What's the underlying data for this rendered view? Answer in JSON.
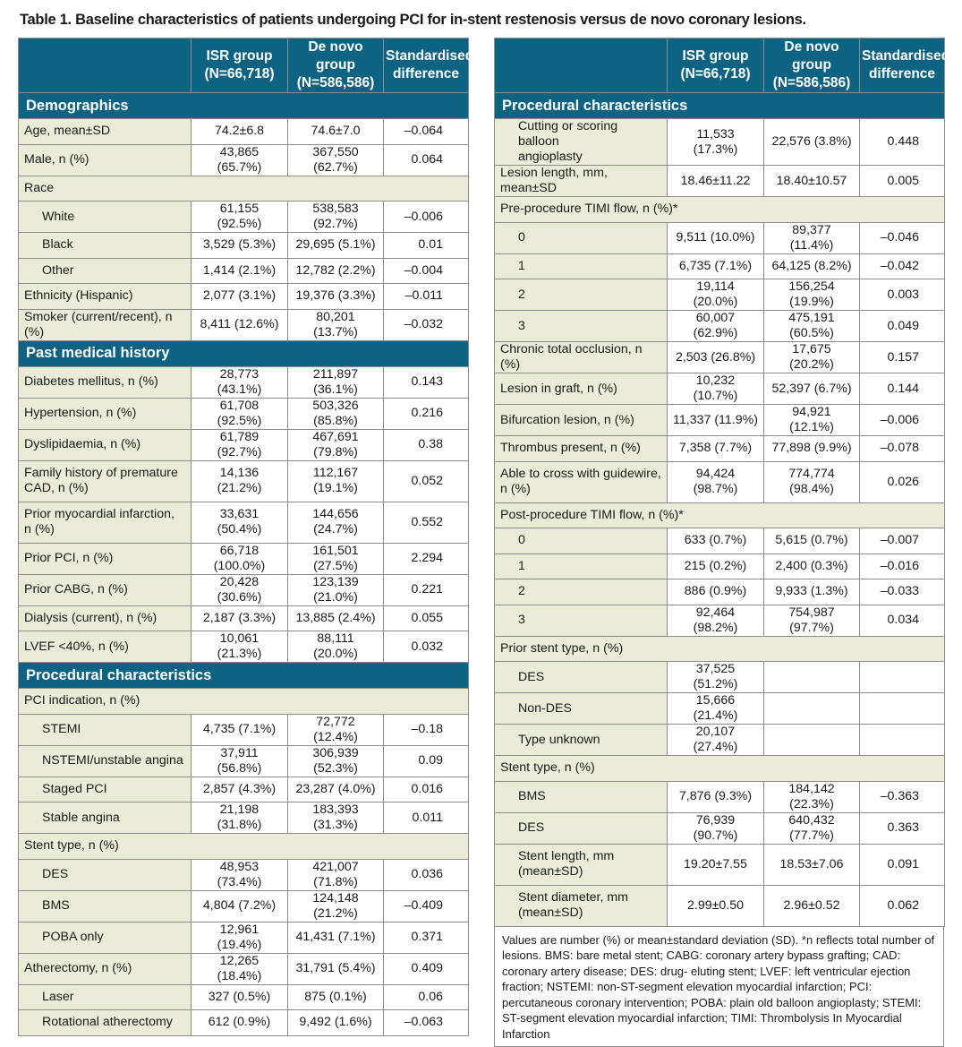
{
  "title": "Table 1. Baseline characteristics of patients undergoing PCI for in-stent restenosis versus de novo coronary lesions.",
  "columns": {
    "isr_line1": "ISR group",
    "isr_line2": "(N=66,718)",
    "dn_line1": "De novo group",
    "dn_line2": "(N=586,586)",
    "sd_line1": "Standardised",
    "sd_line2": "difference"
  },
  "left": {
    "demographics": {
      "header": "Demographics",
      "age": {
        "label": "Age, mean±SD",
        "isr": "74.2±6.8",
        "dn": "74.6±7.0",
        "sd": "–0.064"
      },
      "male": {
        "label": "Male, n (%)",
        "isr": "43,865 (65.7%)",
        "dn": "367,550 (62.7%)",
        "sd": "0.064"
      },
      "race": "Race",
      "white": {
        "label": "White",
        "isr": "61,155 (92.5%)",
        "dn": "538,583 (92.7%)",
        "sd": "–0.006"
      },
      "black": {
        "label": "Black",
        "isr": "3,529 (5.3%)",
        "dn": "29,695 (5.1%)",
        "sd": "0.01"
      },
      "other": {
        "label": "Other",
        "isr": "1,414 (2.1%)",
        "dn": "12,782 (2.2%)",
        "sd": "–0.004"
      },
      "hispanic": {
        "label": "Ethnicity (Hispanic)",
        "isr": "2,077 (3.1%)",
        "dn": "19,376 (3.3%)",
        "sd": "–0.011"
      },
      "smoker": {
        "label": "Smoker (current/recent), n (%)",
        "isr": "8,411 (12.6%)",
        "dn": "80,201 (13.7%)",
        "sd": "–0.032"
      }
    },
    "history": {
      "header": "Past medical history",
      "diabetes": {
        "label": "Diabetes mellitus, n (%)",
        "isr": "28,773 (43.1%)",
        "dn": "211,897 (36.1%)",
        "sd": "0.143"
      },
      "hypertension": {
        "label": "Hypertension, n (%)",
        "isr": "61,708 (92.5%)",
        "dn": "503,326 (85.8%)",
        "sd": "0.216"
      },
      "dyslipidaemia": {
        "label": "Dyslipidaemia, n (%)",
        "isr": "61,789 (92.7%)",
        "dn": "467,691 (79.8%)",
        "sd": "0.38"
      },
      "family_cad": {
        "label_line1": "Family history of premature",
        "label_line2": "CAD, n (%)",
        "isr": "14,136 (21.2%)",
        "dn": "112,167 (19.1%)",
        "sd": "0.052"
      },
      "prior_mi": {
        "label_line1": "Prior myocardial infarction,",
        "label_line2": "n (%)",
        "isr": "33,631 (50.4%)",
        "dn": "144,656 (24.7%)",
        "sd": "0.552"
      },
      "prior_pci": {
        "label": "Prior PCI, n (%)",
        "isr": "66,718 (100.0%)",
        "dn": "161,501 (27.5%)",
        "sd": "2.294"
      },
      "prior_cabg": {
        "label": "Prior CABG, n (%)",
        "isr": "20,428 (30.6%)",
        "dn": "123,139 (21.0%)",
        "sd": "0.221"
      },
      "dialysis": {
        "label": "Dialysis (current), n (%)",
        "isr": "2,187 (3.3%)",
        "dn": "13,885 (2.4%)",
        "sd": "0.055"
      },
      "lvef": {
        "label": "LVEF <40%, n (%)",
        "isr": "10,061 (21.3%)",
        "dn": "88,111 (20.0%)",
        "sd": "0.032"
      }
    },
    "procedural": {
      "header": "Procedural characteristics",
      "pci_indication": "PCI indication, n (%)",
      "stemi": {
        "label": "STEMI",
        "isr": "4,735 (7.1%)",
        "dn": "72,772 (12.4%)",
        "sd": "–0.18"
      },
      "nstemi": {
        "label": "NSTEMI/unstable angina",
        "isr": "37,911 (56.8%)",
        "dn": "306,939 (52.3%)",
        "sd": "0.09"
      },
      "staged": {
        "label": "Staged PCI",
        "isr": "2,857 (4.3%)",
        "dn": "23,287 (4.0%)",
        "sd": "0.016"
      },
      "stable": {
        "label": "Stable angina",
        "isr": "21,198 (31.8%)",
        "dn": "183,393 (31.3%)",
        "sd": "0.011"
      },
      "stent_type": "Stent type, n (%)",
      "des": {
        "label": "DES",
        "isr": "48,953 (73.4%)",
        "dn": "421,007 (71.8%)",
        "sd": "0.036"
      },
      "bms": {
        "label": "BMS",
        "isr": "4,804 (7.2%)",
        "dn": "124,148 (21.2%)",
        "sd": "–0.409"
      },
      "poba": {
        "label": "POBA only",
        "isr": "12,961 (19.4%)",
        "dn": "41,431 (7.1%)",
        "sd": "0.371"
      },
      "atherectomy": {
        "label": "Atherectomy, n (%)",
        "isr": "12,265 (18.4%)",
        "dn": "31,791 (5.4%)",
        "sd": "0.409"
      },
      "laser": {
        "label": "Laser",
        "isr": "327 (0.5%)",
        "dn": "875 (0.1%)",
        "sd": "0.06"
      },
      "rotational": {
        "label": "Rotational atherectomy",
        "isr": "612 (0.9%)",
        "dn": "9,492 (1.6%)",
        "sd": "–0.063"
      }
    }
  },
  "right": {
    "header": "Procedural characteristics",
    "cutting": {
      "label_line1": "Cutting or scoring balloon",
      "label_line2": "angioplasty",
      "isr": "11,533 (17.3%)",
      "dn": "22,576 (3.8%)",
      "sd": "0.448"
    },
    "lesion_length": {
      "label": "Lesion length, mm, mean±SD",
      "isr": "18.46±11.22",
      "dn": "18.40±10.57",
      "sd": "0.005"
    },
    "pre_timi": "Pre-procedure TIMI flow, n (%)*",
    "pre0": {
      "label": "0",
      "isr": "9,511 (10.0%)",
      "dn": "89,377 (11.4%)",
      "sd": "–0.046"
    },
    "pre1": {
      "label": "1",
      "isr": "6,735 (7.1%)",
      "dn": "64,125 (8.2%)",
      "sd": "–0.042"
    },
    "pre2": {
      "label": "2",
      "isr": "19,114 (20.0%)",
      "dn": "156,254 (19.9%)",
      "sd": "0.003"
    },
    "pre3": {
      "label": "3",
      "isr": "60,007 (62.9%)",
      "dn": "475,191 (60.5%)",
      "sd": "0.049"
    },
    "cto": {
      "label": "Chronic total occlusion, n (%)",
      "isr": "2,503 (26.8%)",
      "dn": "17,675 (20.2%)",
      "sd": "0.157"
    },
    "graft": {
      "label": "Lesion in graft, n (%)",
      "isr": "10,232 (10.7%)",
      "dn": "52,397 (6.7%)",
      "sd": "0.144"
    },
    "bifurcation": {
      "label": "Bifurcation lesion, n (%)",
      "isr": "11,337 (11.9%)",
      "dn": "94,921 (12.1%)",
      "sd": "–0.006"
    },
    "thrombus": {
      "label": "Thrombus present, n (%)",
      "isr": "7,358 (7.7%)",
      "dn": "77,898 (9.9%)",
      "sd": "–0.078"
    },
    "guidewire": {
      "label_line1": "Able to cross with guidewire,",
      "label_line2": "n (%)",
      "isr": "94,424 (98.7%)",
      "dn": "774,774 (98.4%)",
      "sd": "0.026"
    },
    "post_timi": "Post-procedure TIMI flow, n (%)*",
    "post0": {
      "label": "0",
      "isr": "633 (0.7%)",
      "dn": "5,615 (0.7%)",
      "sd": "–0.007"
    },
    "post1": {
      "label": "1",
      "isr": "215 (0.2%)",
      "dn": "2,400 (0.3%)",
      "sd": "–0.016"
    },
    "post2": {
      "label": "2",
      "isr": "886 (0.9%)",
      "dn": "9,933 (1.3%)",
      "sd": "–0.033"
    },
    "post3": {
      "label": "3",
      "isr": "92,464 (98.2%)",
      "dn": "754,987 (97.7%)",
      "sd": "0.034"
    },
    "prior_stent": "Prior stent type, n (%)",
    "ps_des": {
      "label": "DES",
      "isr": "37,525 (51.2%)"
    },
    "ps_nondes": {
      "label": "Non-DES",
      "isr": "15,666 (21.4%)"
    },
    "ps_unknown": {
      "label": "Type unknown",
      "isr": "20,107 (27.4%)"
    },
    "stent_type": "Stent type, n (%)",
    "st_bms": {
      "label": "BMS",
      "isr": "7,876 (9.3%)",
      "dn": "184,142 (22.3%)",
      "sd": "–0.363"
    },
    "st_des": {
      "label": "DES",
      "isr": "76,939 (90.7%)",
      "dn": "640,432 (77.7%)",
      "sd": "0.363"
    },
    "stent_length": {
      "label_line1": "Stent length, mm",
      "label_line2": "(mean±SD)",
      "isr": "19.20±7.55",
      "dn": "18.53±7.06",
      "sd": "0.091"
    },
    "stent_diameter": {
      "label_line1": "Stent diameter, mm",
      "label_line2": "(mean±SD)",
      "isr": "2.99±0.50",
      "dn": "2.96±0.52",
      "sd": "0.062"
    }
  },
  "footnote": "Values are number (%) or mean±standard deviation (SD). *n reflects total number of lesions. BMS: bare metal stent; CABG: coronary artery bypass grafting; CAD: coronary artery disease; DES: drug- eluting stent; LVEF: left ventricular ejection fraction; NSTEMI: non-ST-segment elevation myocardial infarction; PCI: percutaneous coronary intervention; POBA: plain old balloon angioplasty; STEMI: ST-segment elevation myocardial infarction; TIMI: Thrombolysis In Myocardial Infarction"
}
